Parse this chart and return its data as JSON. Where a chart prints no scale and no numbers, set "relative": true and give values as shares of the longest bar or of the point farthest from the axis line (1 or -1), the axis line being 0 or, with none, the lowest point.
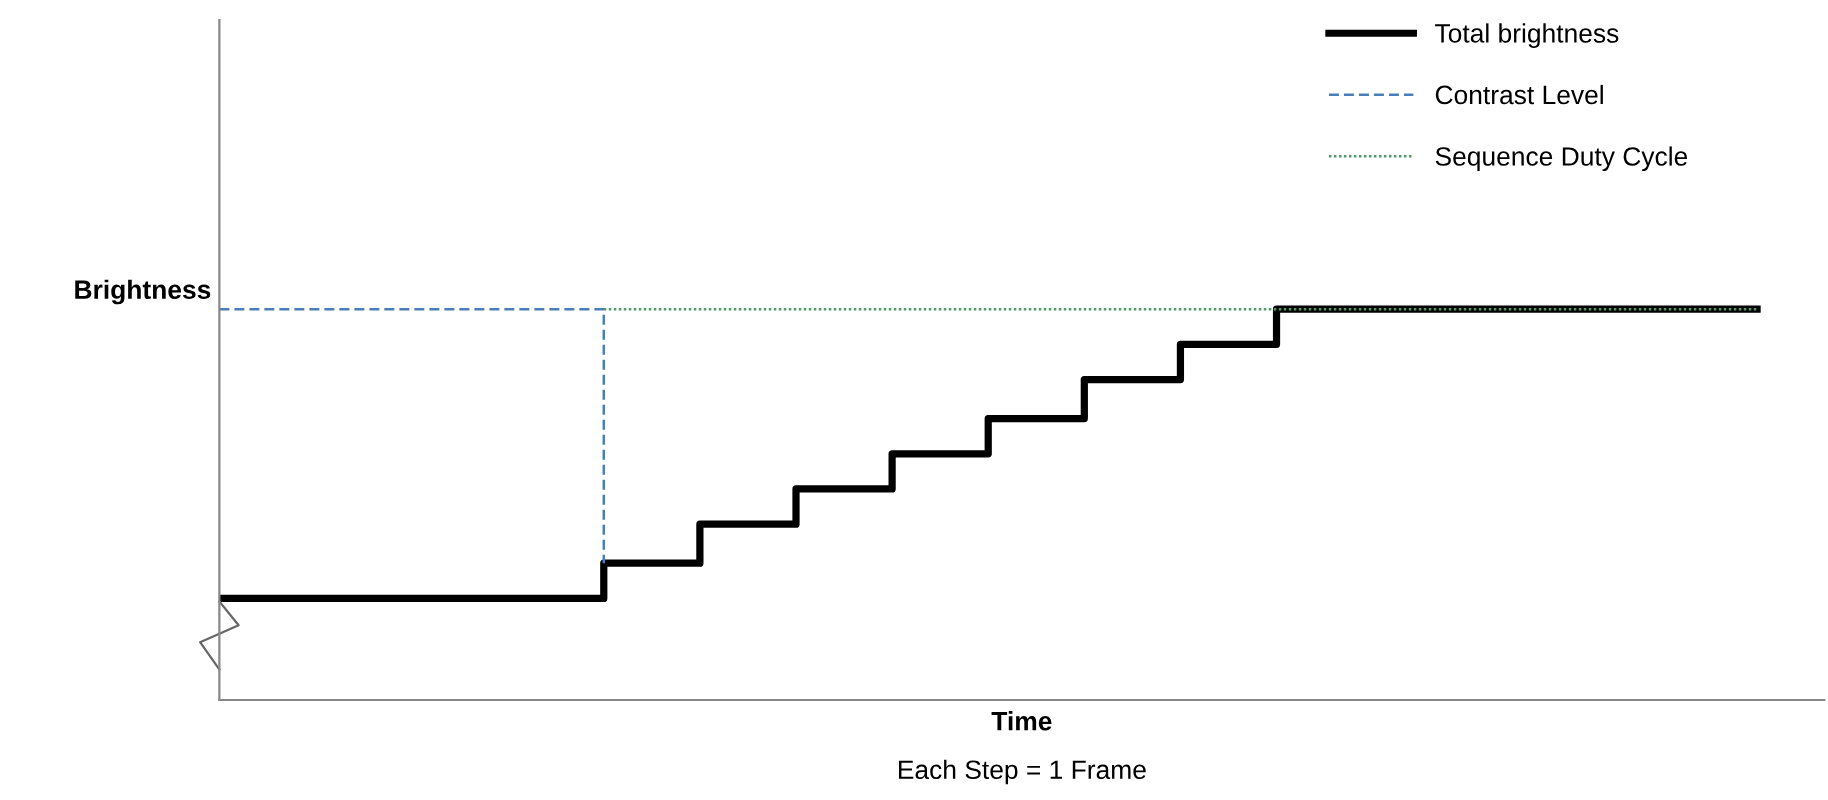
{
  "chart_data": {
    "type": "step",
    "relative": true,
    "tick_labels": false,
    "legend": "top right",
    "xlabel": "Time",
    "ylabel": "Brightness",
    "annotations": [
      "Each Step = 1 Frame"
    ],
    "categories": [
      null,
      null,
      null,
      null,
      null,
      null,
      null,
      null,
      null,
      null,
      null,
      null,
      null,
      null,
      null,
      null,
      null
    ],
    "series": [
      {
        "name": "Total brightness",
        "color": "#000000",
        "line_style": "solid",
        "values": [
          0.26,
          0.26,
          0.26,
          0.26,
          0.35,
          0.45,
          0.54,
          0.63,
          0.72,
          0.82,
          0.91,
          1,
          1,
          1,
          1,
          1,
          1
        ]
      },
      {
        "name": "Contrast Level",
        "type": "step",
        "color": "#4a7ebb",
        "line_style": "dashed",
        "values": [
          1,
          1,
          1,
          1,
          0.35,
          null,
          null,
          null,
          null,
          null,
          null,
          null,
          null,
          null,
          null,
          null,
          null
        ]
      },
      {
        "name": "Sequence Duty Cycle",
        "type": "line",
        "color": "#4e9a6a",
        "line_style": "dotted",
        "values": [
          null,
          null,
          null,
          null,
          1,
          1,
          1,
          1,
          1,
          1,
          1,
          1,
          1,
          1,
          1,
          1,
          1
        ]
      }
    ]
  }
}
